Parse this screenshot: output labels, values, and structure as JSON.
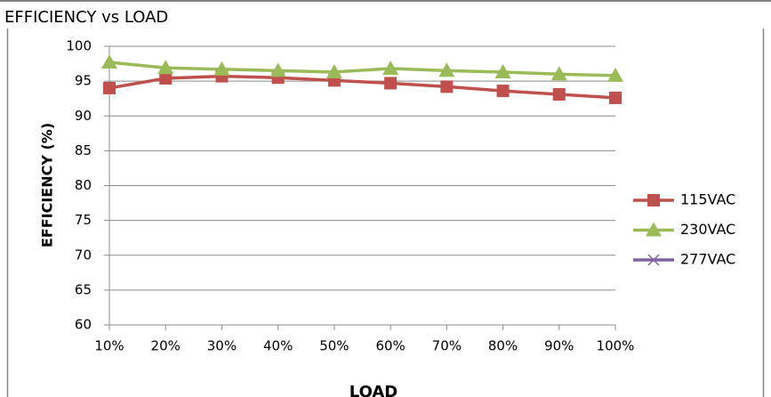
{
  "chart_data": {
    "type": "line",
    "title": "EFFICIENCY vs LOAD",
    "x_label": "LOAD",
    "y_label": "EFFICIENCY (%)",
    "categories": [
      "10%",
      "20%",
      "30%",
      "40%",
      "50%",
      "60%",
      "70%",
      "80%",
      "90%",
      "100%"
    ],
    "series": [
      {
        "name": "115VAC",
        "color": "#c0504d",
        "marker": "square",
        "values": [
          94.0,
          95.4,
          95.7,
          95.5,
          95.1,
          94.7,
          94.2,
          93.6,
          93.1,
          92.6
        ]
      },
      {
        "name": "230VAC",
        "color": "#9bbb59",
        "marker": "triangle",
        "values": [
          97.7,
          96.9,
          96.7,
          96.5,
          96.3,
          96.8,
          96.5,
          96.3,
          96.0,
          95.8
        ]
      },
      {
        "name": "277VAC",
        "color": "#8064a2",
        "marker": "x",
        "values": [
          null,
          null,
          null,
          null,
          null,
          null,
          null,
          null,
          null,
          null
        ]
      }
    ],
    "ylim": [
      60,
      100
    ],
    "yticks": [
      60,
      65,
      70,
      75,
      80,
      85,
      90,
      95,
      100
    ],
    "grid": true,
    "legend": "right"
  }
}
